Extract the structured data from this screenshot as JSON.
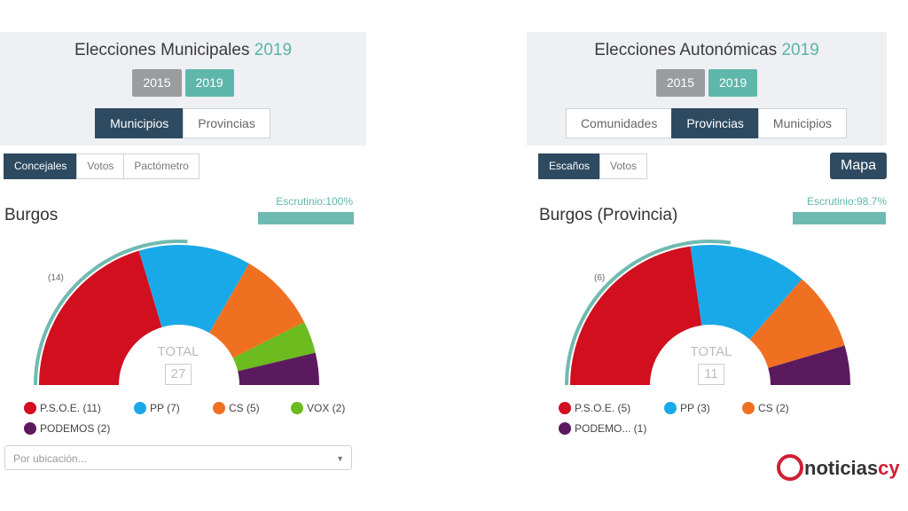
{
  "panels": [
    {
      "title_text": "Elecciones Municipales",
      "title_year": "2019",
      "years": [
        "2015",
        "2019"
      ],
      "tabs": [
        "Municipios",
        "Provincias"
      ],
      "subtabs": [
        "Concejales",
        "Votos",
        "Pactómetro"
      ],
      "escrutinio": "Escrutinio:100%",
      "escrutinio_value": 100,
      "place": "Burgos",
      "total_label": "TOTAL",
      "total_value": "27",
      "callout": "(14)",
      "legend": [
        "P.S.O.E. (11)",
        "PP (7)",
        "CS (5)",
        "VOX (2)",
        "PODEMOS (2)"
      ],
      "select_placeholder": "Por ubicación..."
    },
    {
      "title_text": "Elecciones Autonómicas",
      "title_year": "2019",
      "years": [
        "2015",
        "2019"
      ],
      "tabs": [
        "Comunidades",
        "Provincias",
        "Municipios"
      ],
      "subtabs": [
        "Escaños",
        "Votos"
      ],
      "mapa": "Mapa",
      "escrutinio": "Escrutinio:98.7%",
      "escrutinio_value": 98.7,
      "place": "Burgos (Provincia)",
      "total_label": "TOTAL",
      "total_value": "11",
      "callout": "(6)",
      "legend": [
        "P.S.O.E. (5)",
        "PP (3)",
        "CS (2)",
        "PODEMO...  (1)"
      ]
    }
  ],
  "colors": {
    "psoe": "#d10f1f",
    "pp": "#1aa9e8",
    "cs": "#f07022",
    "vox": "#6cbb1f",
    "podemos": "#5b1a5e",
    "majority": "#6fbab0"
  },
  "logo": {
    "prefix": "noticias",
    "accent": "cy"
  },
  "chart_data": [
    {
      "type": "pie",
      "subtype": "parliament-semicircle",
      "title": "Burgos",
      "total": 27,
      "majority_label": "(14)",
      "majority": 14,
      "categories": [
        "P.S.O.E.",
        "PP",
        "CS",
        "VOX",
        "PODEMOS"
      ],
      "values": [
        11,
        7,
        5,
        2,
        2
      ],
      "colors": [
        "#d10f1f",
        "#1aa9e8",
        "#f07022",
        "#6cbb1f",
        "#5b1a5e"
      ]
    },
    {
      "type": "pie",
      "subtype": "parliament-semicircle",
      "title": "Burgos (Provincia)",
      "total": 11,
      "majority_label": "(6)",
      "majority": 6,
      "categories": [
        "P.S.O.E.",
        "PP",
        "CS",
        "PODEMOS"
      ],
      "values": [
        5,
        3,
        2,
        1
      ],
      "colors": [
        "#d10f1f",
        "#1aa9e8",
        "#f07022",
        "#5b1a5e"
      ]
    }
  ]
}
